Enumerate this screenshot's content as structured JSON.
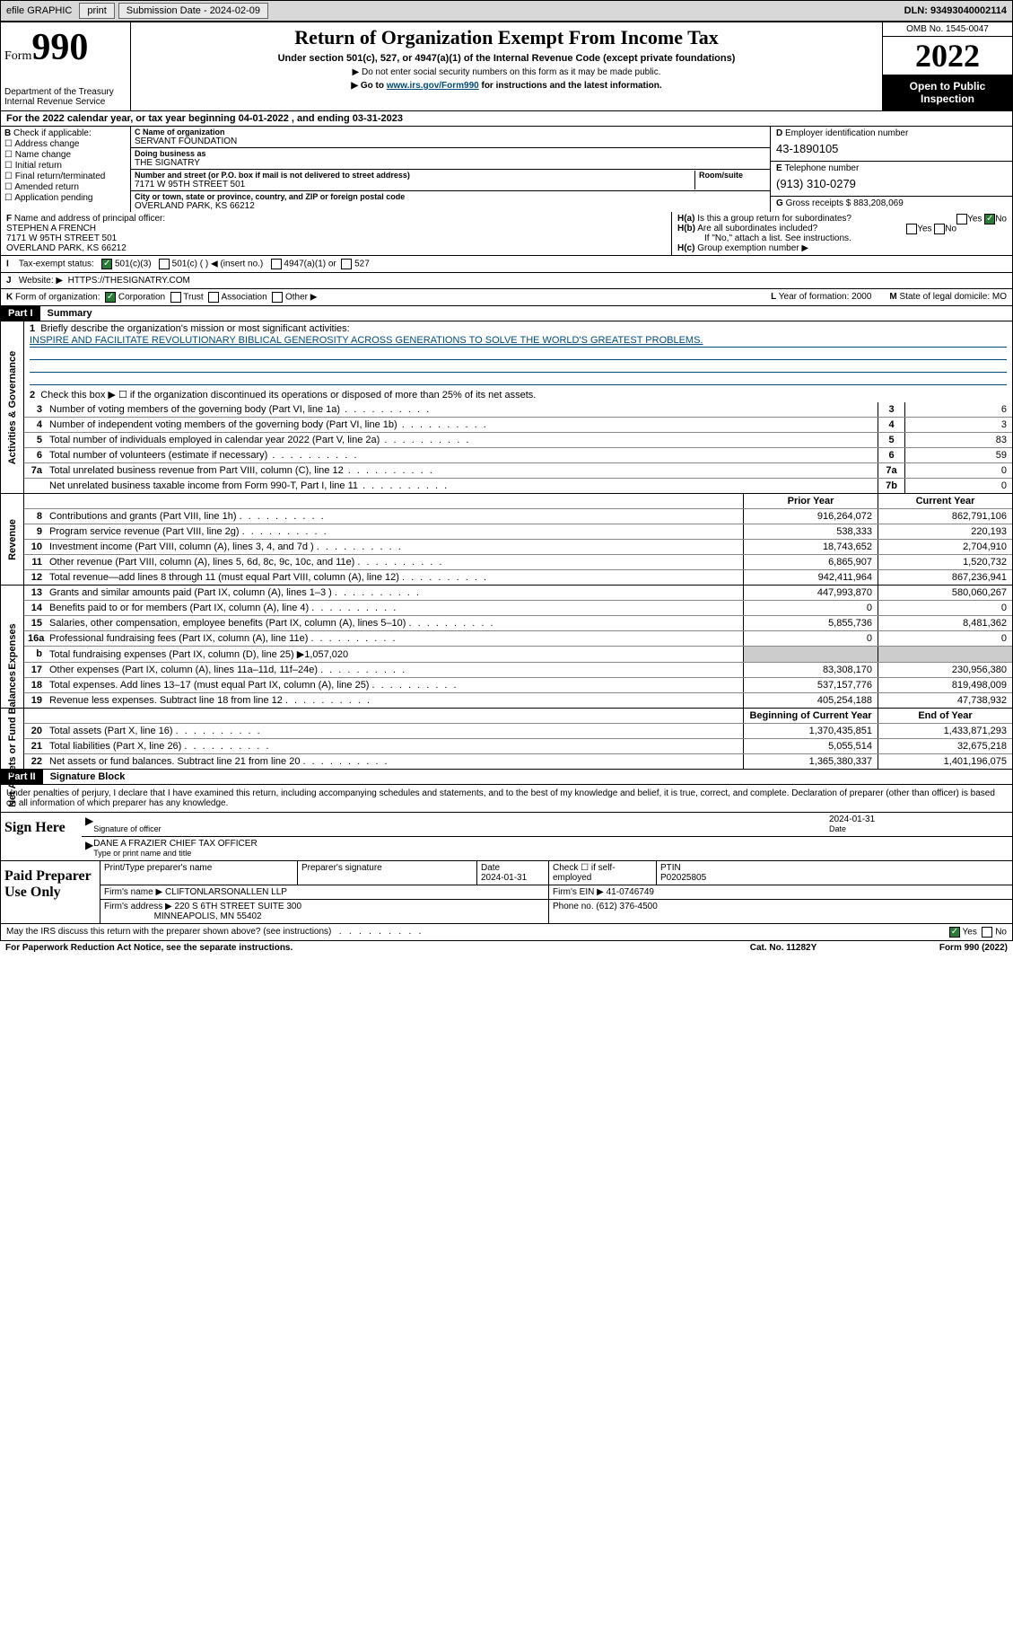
{
  "topbar": {
    "efile": "efile GRAPHIC",
    "print": "print",
    "submission": "Submission Date - 2024-02-09",
    "dln": "DLN: 93493040002114"
  },
  "header": {
    "form_word": "Form",
    "form_num": "990",
    "dept": "Department of the Treasury Internal Revenue Service",
    "title": "Return of Organization Exempt From Income Tax",
    "sub1": "Under section 501(c), 527, or 4947(a)(1) of the Internal Revenue Code (except private foundations)",
    "sub2": "▶ Do not enter social security numbers on this form as it may be made public.",
    "sub3_pre": "▶ Go to ",
    "sub3_link": "www.irs.gov/Form990",
    "sub3_post": " for instructions and the latest information.",
    "omb": "OMB No. 1545-0047",
    "year": "2022",
    "open": "Open to Public Inspection"
  },
  "A": "For the 2022 calendar year, or tax year beginning 04-01-2022   , and ending 03-31-2023",
  "B": {
    "label": "Check if applicable:",
    "items": [
      "Address change",
      "Name change",
      "Initial return",
      "Final return/terminated",
      "Amended return",
      "Application pending"
    ]
  },
  "C": {
    "name_lbl": "Name of organization",
    "name": "SERVANT FOUNDATION",
    "dba_lbl": "Doing business as",
    "dba": "THE SIGNATRY",
    "street_lbl": "Number and street (or P.O. box if mail is not delivered to street address)",
    "room_lbl": "Room/suite",
    "street": "7171 W 95TH STREET 501",
    "city_lbl": "City or town, state or province, country, and ZIP or foreign postal code",
    "city": "OVERLAND PARK, KS  66212"
  },
  "D": {
    "lbl": "Employer identification number",
    "val": "43-1890105"
  },
  "E": {
    "lbl": "Telephone number",
    "val": "(913) 310-0279"
  },
  "G": {
    "lbl": "Gross receipts $",
    "val": "883,208,069"
  },
  "F": {
    "lbl": "Name and address of principal officer:",
    "name": "STEPHEN A FRENCH",
    "addr1": "7171 W 95TH STREET 501",
    "addr2": "OVERLAND PARK, KS  66212"
  },
  "H": {
    "a": "Is this a group return for subordinates?",
    "a_yes": "Yes",
    "a_no": "No",
    "b": "Are all subordinates included?",
    "b_note": "If \"No,\" attach a list. See instructions.",
    "c": "Group exemption number ▶"
  },
  "I": {
    "lbl": "Tax-exempt status:",
    "o1": "501(c)(3)",
    "o2": "501(c) (   ) ◀ (insert no.)",
    "o3": "4947(a)(1) or",
    "o4": "527"
  },
  "J": {
    "lbl": "Website: ▶",
    "val": "HTTPS://THESIGNATRY.COM"
  },
  "K": {
    "lbl": "Form of organization:",
    "opts": [
      "Corporation",
      "Trust",
      "Association",
      "Other ▶"
    ],
    "L": "Year of formation: 2000",
    "M": "State of legal domicile: MO"
  },
  "partI": {
    "tag": "Part I",
    "title": "Summary"
  },
  "mission": {
    "lbl": "Briefly describe the organization's mission or most significant activities:",
    "text": "INSPIRE AND FACILITATE REVOLUTIONARY BIBLICAL GENEROSITY ACROSS GENERATIONS TO SOLVE THE WORLD'S GREATEST PROBLEMS."
  },
  "line2": "Check this box ▶ ☐  if the organization discontinued its operations or disposed of more than 25% of its net assets.",
  "sections": {
    "gov": {
      "label": "Activities & Governance",
      "rows": [
        {
          "n": "3",
          "d": "Number of voting members of the governing body (Part VI, line 1a)",
          "c": "3",
          "v": "6"
        },
        {
          "n": "4",
          "d": "Number of independent voting members of the governing body (Part VI, line 1b)",
          "c": "4",
          "v": "3"
        },
        {
          "n": "5",
          "d": "Total number of individuals employed in calendar year 2022 (Part V, line 2a)",
          "c": "5",
          "v": "83"
        },
        {
          "n": "6",
          "d": "Total number of volunteers (estimate if necessary)",
          "c": "6",
          "v": "59"
        },
        {
          "n": "7a",
          "d": "Total unrelated business revenue from Part VIII, column (C), line 12",
          "c": "7a",
          "v": "0"
        },
        {
          "n": "",
          "d": "Net unrelated business taxable income from Form 990-T, Part I, line 11",
          "c": "7b",
          "v": "0"
        }
      ]
    },
    "rev": {
      "label": "Revenue",
      "hdr": {
        "v1": "Prior Year",
        "v2": "Current Year"
      },
      "rows": [
        {
          "n": "8",
          "d": "Contributions and grants (Part VIII, line 1h)",
          "v1": "916,264,072",
          "v2": "862,791,106"
        },
        {
          "n": "9",
          "d": "Program service revenue (Part VIII, line 2g)",
          "v1": "538,333",
          "v2": "220,193"
        },
        {
          "n": "10",
          "d": "Investment income (Part VIII, column (A), lines 3, 4, and 7d )",
          "v1": "18,743,652",
          "v2": "2,704,910"
        },
        {
          "n": "11",
          "d": "Other revenue (Part VIII, column (A), lines 5, 6d, 8c, 9c, 10c, and 11e)",
          "v1": "6,865,907",
          "v2": "1,520,732"
        },
        {
          "n": "12",
          "d": "Total revenue—add lines 8 through 11 (must equal Part VIII, column (A), line 12)",
          "v1": "942,411,964",
          "v2": "867,236,941"
        }
      ]
    },
    "exp": {
      "label": "Expenses",
      "rows": [
        {
          "n": "13",
          "d": "Grants and similar amounts paid (Part IX, column (A), lines 1–3 )",
          "v1": "447,993,870",
          "v2": "580,060,267"
        },
        {
          "n": "14",
          "d": "Benefits paid to or for members (Part IX, column (A), line 4)",
          "v1": "0",
          "v2": "0"
        },
        {
          "n": "15",
          "d": "Salaries, other compensation, employee benefits (Part IX, column (A), lines 5–10)",
          "v1": "5,855,736",
          "v2": "8,481,362"
        },
        {
          "n": "16a",
          "d": "Professional fundraising fees (Part IX, column (A), line 11e)",
          "v1": "0",
          "v2": "0"
        },
        {
          "n": "b",
          "d": "Total fundraising expenses (Part IX, column (D), line 25) ▶1,057,020",
          "v1": "",
          "v2": "",
          "g": true
        },
        {
          "n": "17",
          "d": "Other expenses (Part IX, column (A), lines 11a–11d, 11f–24e)",
          "v1": "83,308,170",
          "v2": "230,956,380"
        },
        {
          "n": "18",
          "d": "Total expenses. Add lines 13–17 (must equal Part IX, column (A), line 25)",
          "v1": "537,157,776",
          "v2": "819,498,009"
        },
        {
          "n": "19",
          "d": "Revenue less expenses. Subtract line 18 from line 12",
          "v1": "405,254,188",
          "v2": "47,738,932"
        }
      ]
    },
    "net": {
      "label": "Net Assets or Fund Balances",
      "hdr": {
        "v1": "Beginning of Current Year",
        "v2": "End of Year"
      },
      "rows": [
        {
          "n": "20",
          "d": "Total assets (Part X, line 16)",
          "v1": "1,370,435,851",
          "v2": "1,433,871,293"
        },
        {
          "n": "21",
          "d": "Total liabilities (Part X, line 26)",
          "v1": "5,055,514",
          "v2": "32,675,218"
        },
        {
          "n": "22",
          "d": "Net assets or fund balances. Subtract line 21 from line 20",
          "v1": "1,365,380,337",
          "v2": "1,401,196,075"
        }
      ]
    }
  },
  "partII": {
    "tag": "Part II",
    "title": "Signature Block"
  },
  "perjury": "Under penalties of perjury, I declare that I have examined this return, including accompanying schedules and statements, and to the best of my knowledge and belief, it is true, correct, and complete. Declaration of preparer (other than officer) is based on all information of which preparer has any knowledge.",
  "sign": {
    "here": "Sign Here",
    "sig_lbl": "Signature of officer",
    "date_lbl": "Date",
    "date": "2024-01-31",
    "name": "DANE A FRAZIER  CHIEF TAX OFFICER",
    "name_lbl": "Type or print name and title"
  },
  "paid": {
    "lbl": "Paid Preparer Use Only",
    "h": [
      "Print/Type preparer's name",
      "Preparer's signature",
      "Date",
      "",
      "PTIN"
    ],
    "date": "2024-01-31",
    "check": "Check ☐ if self-employed",
    "ptin": "P02025805",
    "firm_lbl": "Firm's name   ▶",
    "firm": "CLIFTONLARSONALLEN LLP",
    "ein_lbl": "Firm's EIN ▶",
    "ein": "41-0746749",
    "addr_lbl": "Firm's address ▶",
    "addr1": "220 S 6TH STREET SUITE 300",
    "addr2": "MINNEAPOLIS, MN  55402",
    "phone_lbl": "Phone no.",
    "phone": "(612) 376-4500"
  },
  "discuss": {
    "q": "May the IRS discuss this return with the preparer shown above? (see instructions)",
    "yes": "Yes",
    "no": "No"
  },
  "footer": {
    "l": "For Paperwork Reduction Act Notice, see the separate instructions.",
    "c": "Cat. No. 11282Y",
    "r": "Form 990 (2022)"
  },
  "colors": {
    "link": "#004b7a",
    "checked": "#2a7a3a",
    "grey": "#cccccc"
  }
}
